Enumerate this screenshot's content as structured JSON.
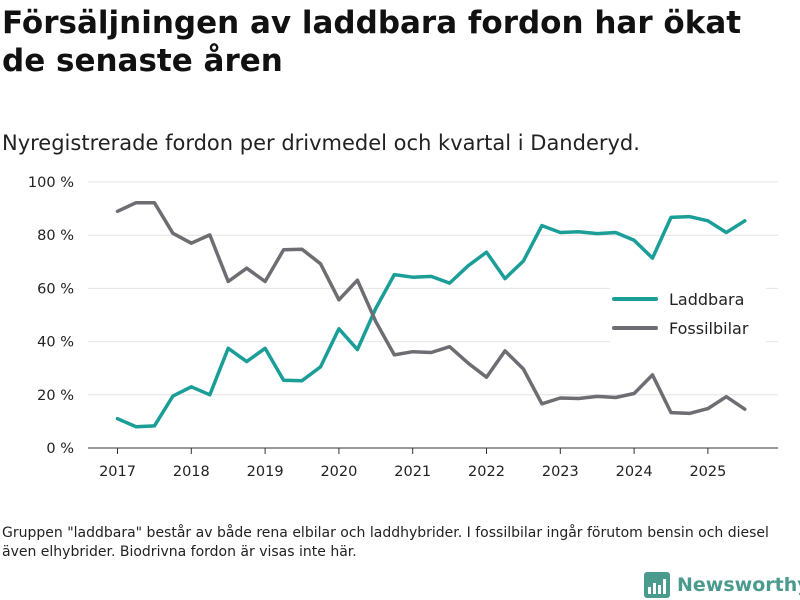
{
  "header": {
    "title": "Försäljningen av laddbara fordon har ökat de senaste åren",
    "subtitle": "Nyregistrerade fordon per drivmedel och kvartal i Danderyd."
  },
  "chart_data": {
    "type": "line",
    "title": "Försäljningen av laddbara fordon har ökat de senaste åren",
    "subtitle": "Nyregistrerade fordon per drivmedel och kvartal i Danderyd.",
    "xlabel": "",
    "ylabel": "",
    "x": [
      2017.0,
      2017.25,
      2017.5,
      2017.75,
      2018.0,
      2018.25,
      2018.5,
      2018.75,
      2019.0,
      2019.25,
      2019.5,
      2019.75,
      2020.0,
      2020.25,
      2020.5,
      2020.75,
      2021.0,
      2021.25,
      2021.5,
      2021.75,
      2022.0,
      2022.25,
      2022.5,
      2022.75,
      2023.0,
      2023.25,
      2023.5,
      2023.75,
      2024.0,
      2024.25,
      2024.5,
      2024.75,
      2025.0,
      2025.25,
      2025.5
    ],
    "xlim": [
      2016.6,
      2025.95
    ],
    "ylim": [
      0,
      100
    ],
    "x_ticks": [
      2017,
      2018,
      2019,
      2020,
      2021,
      2022,
      2023,
      2024,
      2025
    ],
    "x_tick_labels": [
      "2017",
      "2018",
      "2019",
      "2020",
      "2021",
      "2022",
      "2023",
      "2024",
      "2025"
    ],
    "y_ticks": [
      0,
      20,
      40,
      60,
      80,
      100
    ],
    "y_tick_labels": [
      "0 %",
      "20 %",
      "40 %",
      "60 %",
      "80 %",
      "100 %"
    ],
    "grid": true,
    "legend_position": "right",
    "series": [
      {
        "name": "Laddbara",
        "color": "#1a9e97",
        "values": [
          11.0,
          8.0,
          8.3,
          19.5,
          23.0,
          20.0,
          37.5,
          32.5,
          37.5,
          25.5,
          25.3,
          30.5,
          44.8,
          37.0,
          52.5,
          65.2,
          64.2,
          64.5,
          62.0,
          68.5,
          73.6,
          63.7,
          70.3,
          83.6,
          81.0,
          81.3,
          80.6,
          81.0,
          78.1,
          71.4,
          86.7,
          87.0,
          85.4,
          81.0,
          85.4
        ]
      },
      {
        "name": "Fossilbilar",
        "color": "#6e6d73",
        "values": [
          89.0,
          92.2,
          92.2,
          80.7,
          77.0,
          80.1,
          62.6,
          67.6,
          62.6,
          74.5,
          74.7,
          69.3,
          55.7,
          63.1,
          47.5,
          35.0,
          36.2,
          35.9,
          38.1,
          31.9,
          26.6,
          36.5,
          29.7,
          16.6,
          18.8,
          18.6,
          19.4,
          19.0,
          20.5,
          27.5,
          13.3,
          13.0,
          14.8,
          19.3,
          14.6
        ]
      }
    ]
  },
  "footnote": "Gruppen \"laddbara\" består av både rena elbilar och laddhybrider. I fossilbilar ingår förutom bensin och diesel även elhybrider. Biodrivna fordon är visas inte här.",
  "brand": {
    "name": "Newsworthy",
    "color": "#4a9a8e"
  }
}
